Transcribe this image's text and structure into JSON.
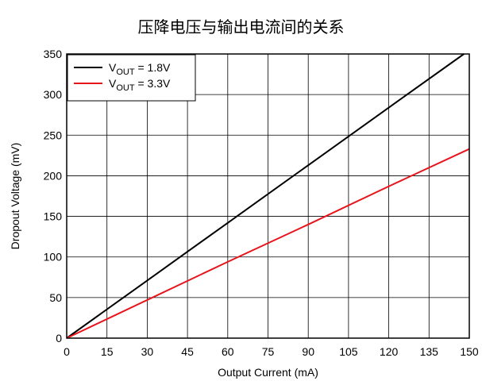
{
  "chart_data": {
    "type": "line",
    "title": "压降电压与输出电流间的关系",
    "xlabel": "Output Current (mA)",
    "ylabel": "Dropout Voltage (mV)",
    "xlim": [
      0,
      150
    ],
    "ylim": [
      0,
      350
    ],
    "xticks": [
      0,
      15,
      30,
      45,
      60,
      75,
      90,
      105,
      120,
      135,
      150
    ],
    "yticks": [
      0,
      50,
      100,
      150,
      200,
      250,
      300,
      350
    ],
    "grid": true,
    "legend_position": "top-left",
    "series": [
      {
        "name": "V_OUT = 1.8V",
        "legend_main": "V",
        "legend_sub": "OUT",
        "legend_rest": " = 1.8V",
        "color": "#000000",
        "x": [
          0,
          30,
          60,
          90,
          120,
          148
        ],
        "y": [
          0,
          71,
          142,
          213,
          284,
          350
        ]
      },
      {
        "name": "V_OUT = 3.3V",
        "legend_main": "V",
        "legend_sub": "OUT",
        "legend_rest": " = 3.3V",
        "color": "#e8141c",
        "x": [
          0,
          30,
          60,
          90,
          120,
          150
        ],
        "y": [
          0,
          47,
          94,
          140,
          187,
          233
        ]
      }
    ]
  }
}
